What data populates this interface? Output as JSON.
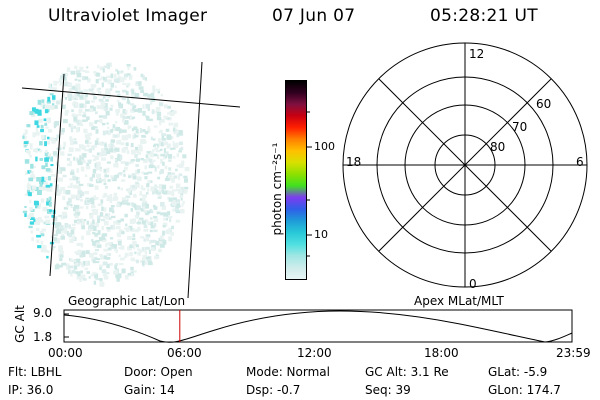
{
  "header": {
    "title": "Ultraviolet Imager",
    "date": "07 Jun 07",
    "time": "05:28:21 UT"
  },
  "colorbar": {
    "unit_label": "photon cm⁻²s⁻¹",
    "tick_100": "100",
    "tick_10": "10",
    "colors": [
      "#e8f4f4",
      "#cdeceb",
      "#9fe6e4",
      "#4fe0e0",
      "#28c8d8",
      "#1e9bd8",
      "#2f5fe8",
      "#7d3cf0",
      "#40e020",
      "#8ee000",
      "#d8e000",
      "#ffc000",
      "#ff8000",
      "#ff2000",
      "#c80010",
      "#801040",
      "#300020",
      "#000000"
    ]
  },
  "left_panel": {
    "caption": "Geographic Lat/Lon"
  },
  "polar_plot": {
    "caption": "Apex MLat/MLT",
    "mlt_labels": {
      "top": "12",
      "bottom": "0",
      "left": "18",
      "right": "6"
    },
    "lat_labels": [
      "60",
      "70",
      "80"
    ]
  },
  "altitude_strip": {
    "ylabel": "GC Alt",
    "yticks": [
      "9.0",
      "1.8"
    ],
    "xticks": [
      "00:00",
      "06:00",
      "12:00",
      "18:00",
      "23:59"
    ],
    "current_time_hours": 5.47
  },
  "info": {
    "row1": [
      "Flt: LBHL",
      "Door: Open",
      "Mode: Normal",
      "GC Alt: 3.1 Re",
      "GLat:  -5.9"
    ],
    "row2": [
      "IP: 36.0",
      "Gain: 14",
      "Dsp:   -0.7",
      "Seq: 39",
      "GLon: 174.7"
    ]
  }
}
